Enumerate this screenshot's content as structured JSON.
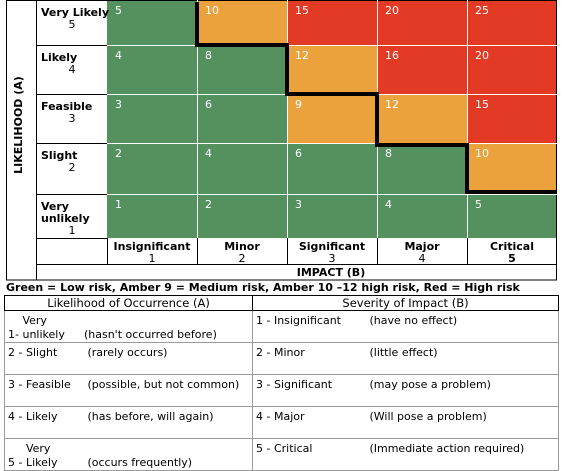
{
  "matrix": {
    "y_axis_label": "LIKELIHOOD (A)",
    "x_axis_label": "IMPACT (B)",
    "rows": [
      {
        "label": "Very Likely",
        "num": "5",
        "cells": [
          "5",
          "10",
          "15",
          "20",
          "25"
        ],
        "colors": [
          "green",
          "amber",
          "red",
          "red",
          "red"
        ]
      },
      {
        "label": "Likely",
        "num": "4",
        "cells": [
          "4",
          "8",
          "12",
          "16",
          "20"
        ],
        "colors": [
          "green",
          "green",
          "amber",
          "red",
          "red"
        ]
      },
      {
        "label": "Feasible",
        "num": "3",
        "cells": [
          "3",
          "6",
          "9",
          "12",
          "15"
        ],
        "colors": [
          "green",
          "green",
          "amber",
          "amber",
          "red"
        ]
      },
      {
        "label": "Slight",
        "num": "2",
        "cells": [
          "2",
          "4",
          "6",
          "8",
          "10"
        ],
        "colors": [
          "green",
          "green",
          "green",
          "green",
          "amber"
        ]
      },
      {
        "label": "Very unlikely",
        "num": "1",
        "cells": [
          "1",
          "2",
          "3",
          "4",
          "5"
        ],
        "colors": [
          "green",
          "green",
          "green",
          "green",
          "green"
        ]
      }
    ],
    "columns": [
      {
        "label": "Insignificant",
        "num": "1"
      },
      {
        "label": "Minor",
        "num": "2"
      },
      {
        "label": "Significant",
        "num": "3"
      },
      {
        "label": "Major",
        "num": "4"
      },
      {
        "label": "Critical",
        "num": "5"
      }
    ],
    "colors": {
      "green": "#55915f",
      "amber": "#eba23d",
      "red": "#e23a25"
    }
  },
  "legend_text": "Green = Low risk, Amber 9 = Medium risk, Amber 10 –12 high risk, Red = High risk",
  "key_table": {
    "headers": [
      "Likelihood of Occurrence (A)",
      "Severity of Impact (B)"
    ],
    "rows": [
      {
        "l_num": "1-",
        "l_label": "Very unlikely",
        "l_desc": "(hasn't occurred before)",
        "s_num": "1 -",
        "s_label": "Insignificant",
        "s_desc": "(have no effect)"
      },
      {
        "l_num": "2 -",
        "l_label": "Slight",
        "l_desc": "(rarely occurs)",
        "s_num": "2 -",
        "s_label": "Minor",
        "s_desc": "(little effect)"
      },
      {
        "l_num": "3 -",
        "l_label": "Feasible",
        "l_desc": "(possible, but not common)",
        "s_num": "3 -",
        "s_label": "Significant",
        "s_desc": "(may pose a problem)"
      },
      {
        "l_num": "4 -",
        "l_label": "Likely",
        "l_desc": "(has before, will again)",
        "s_num": "4 -",
        "s_label": "Major",
        "s_desc": "(Will pose a problem)"
      },
      {
        "l_num": "5 -",
        "l_label": "Very Likely",
        "l_desc": "(occurs frequently)",
        "s_num": "5 -",
        "s_label": "Critical",
        "s_desc": "(Immediate action required)"
      }
    ]
  }
}
